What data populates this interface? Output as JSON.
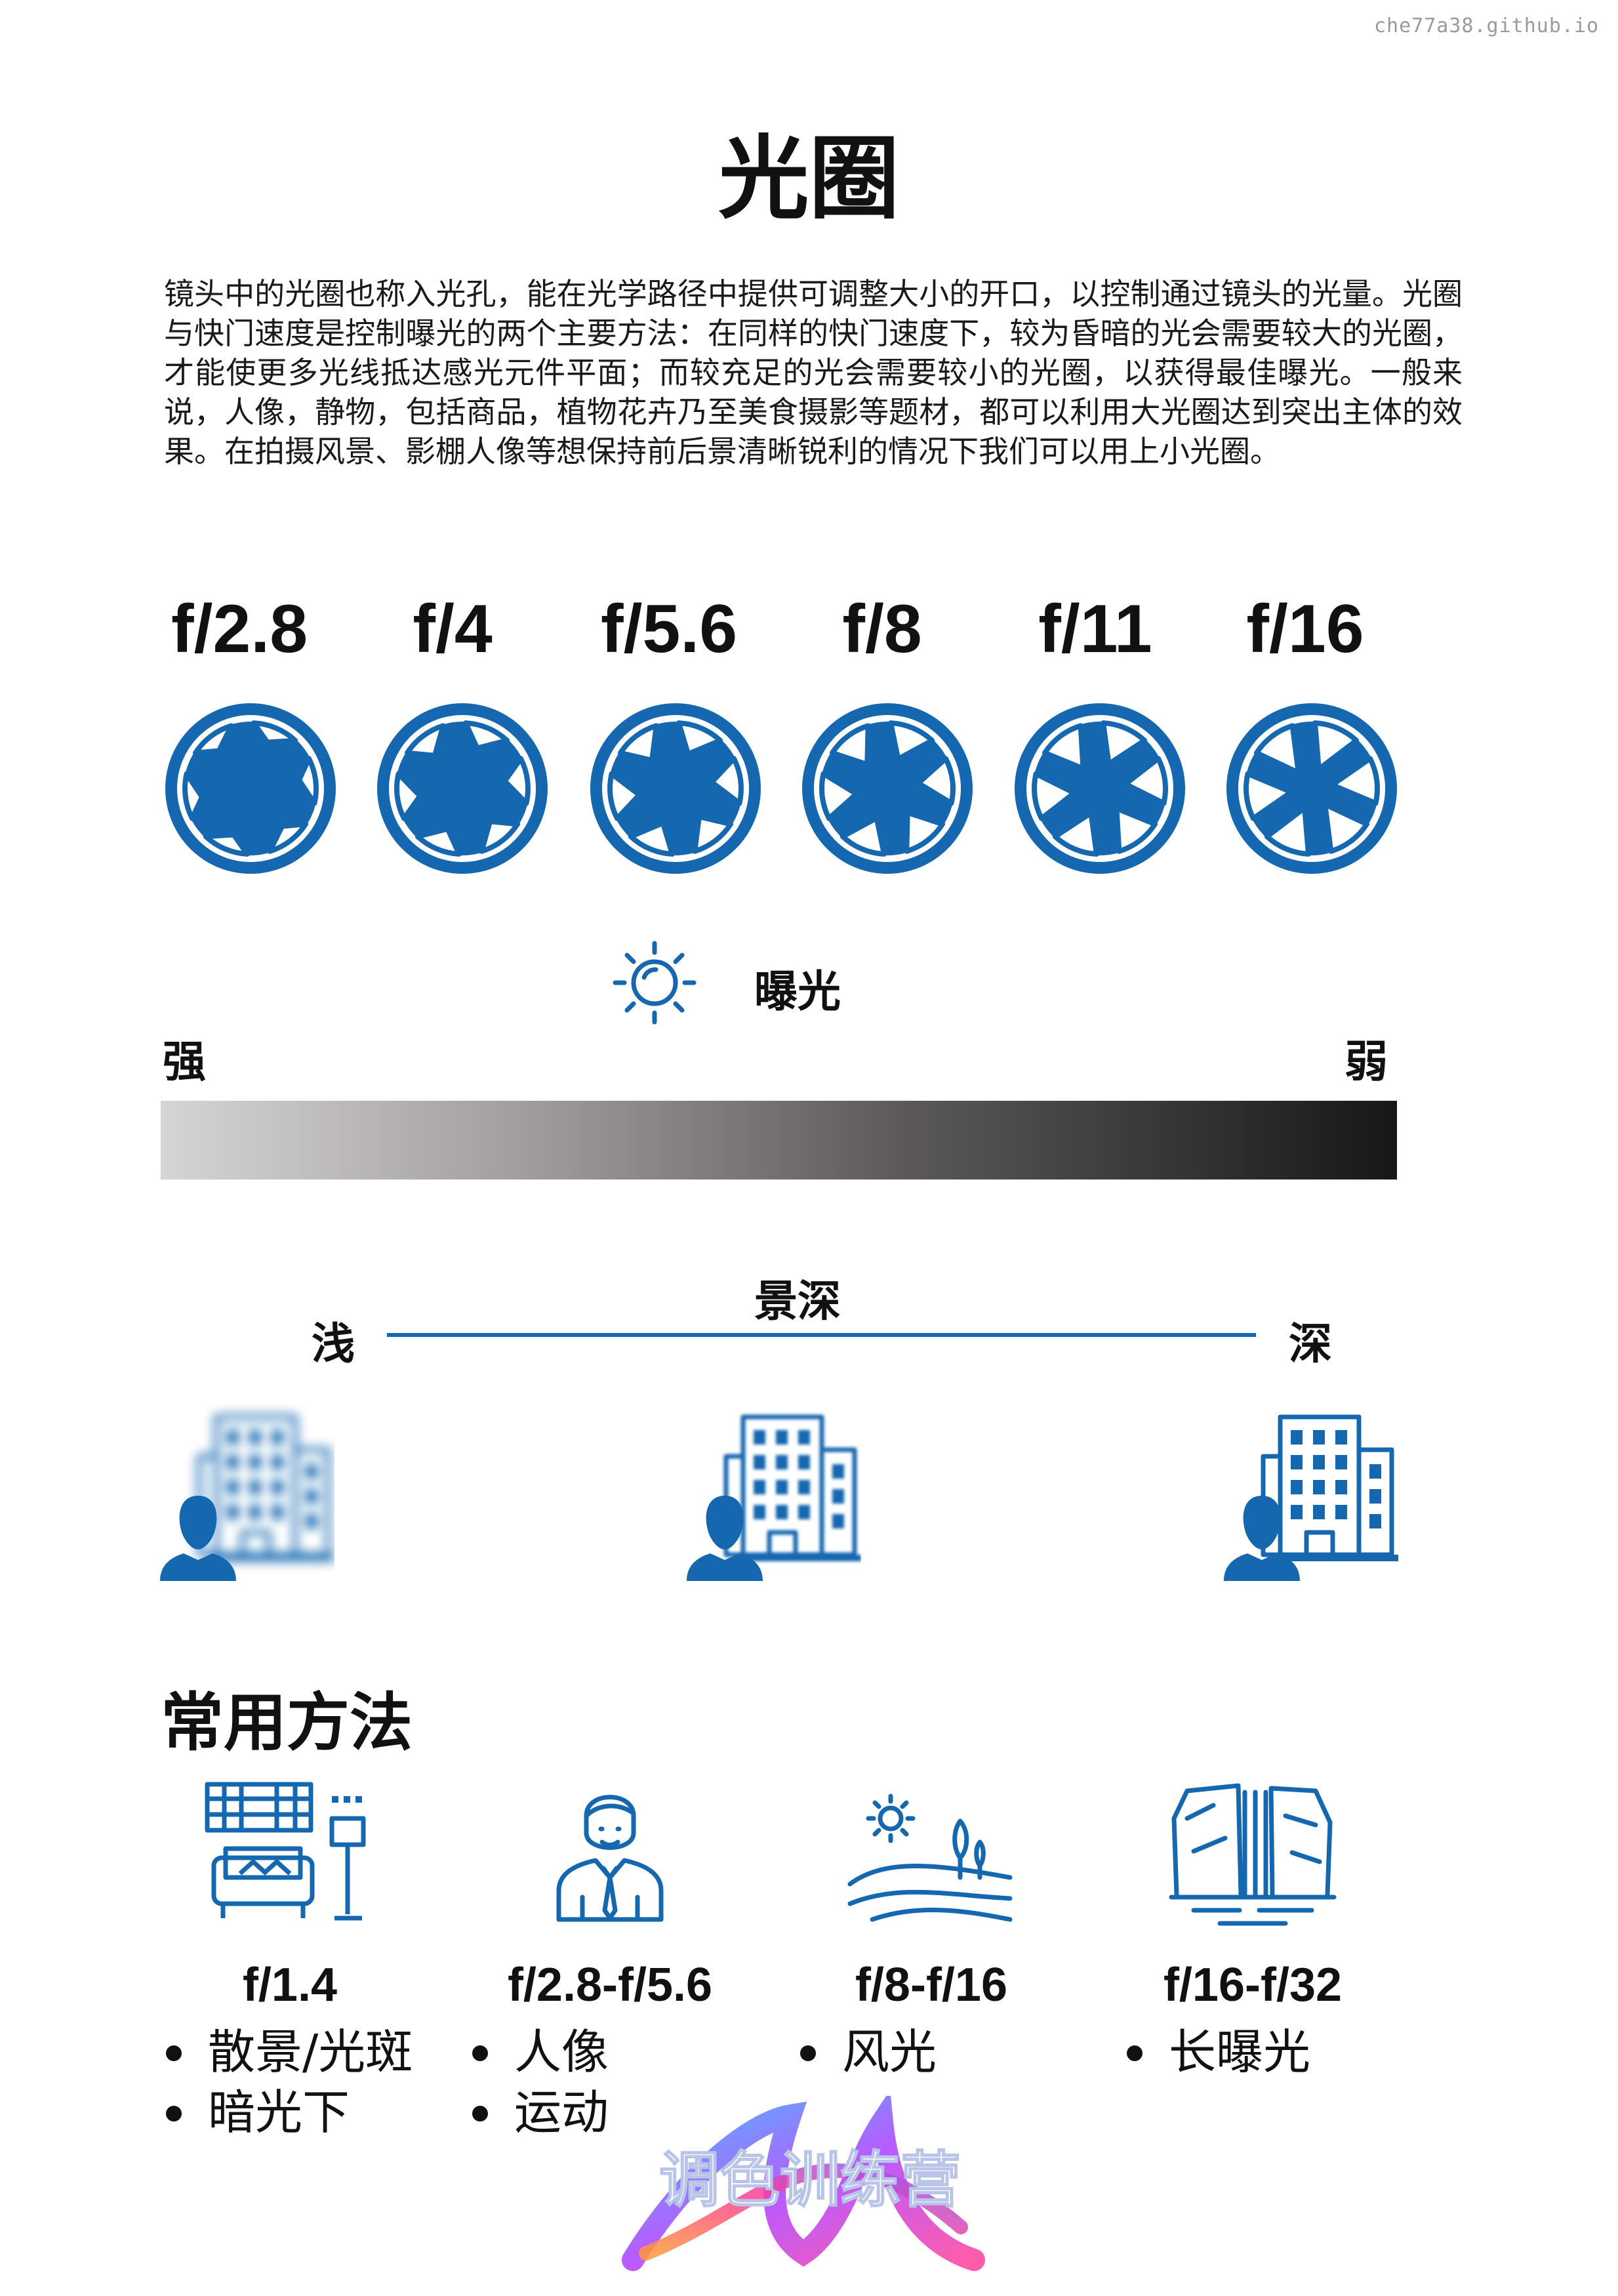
{
  "watermark": "che77a38.github.io",
  "title": "光圈",
  "intro": "镜头中的光圈也称入光孔，能在光学路径中提供可调整大小的开口，以控制通过镜头的光量。光圈与快门速度是控制曝光的两个主要方法：在同样的快门速度下，较为昏暗的光会需要较大的光圈，才能使更多光线抵达感光元件平面；而较充足的光会需要较小的光圈，以获得最佳曝光。一般来说，人像，静物，包括商品，植物花卉乃至美食摄影等题材，都可以利用大光圈达到突出主体的效果。在拍摄风景、影棚人像等想保持前后景清晰锐利的情况下我们可以用上小光圈。",
  "f_stops": [
    {
      "label": "f/2.8",
      "opening": 0.78
    },
    {
      "label": "f/4",
      "opening": 0.64
    },
    {
      "label": "f/5.6",
      "opening": 0.5
    },
    {
      "label": "f/8",
      "opening": 0.38
    },
    {
      "label": "f/11",
      "opening": 0.26
    },
    {
      "label": "f/16",
      "opening": 0.14
    }
  ],
  "exposure": {
    "title": "曝光",
    "left_label": "强",
    "right_label": "弱",
    "icon": "sun-icon"
  },
  "dof": {
    "title": "景深",
    "left_label": "浅",
    "right_label": "深",
    "scenes": [
      {
        "name": "shallow",
        "blur": 8
      },
      {
        "name": "medium",
        "blur": 2.5
      },
      {
        "name": "deep",
        "blur": 0
      }
    ]
  },
  "uses": {
    "title": "常用方法",
    "items": [
      {
        "icon": "living-room-icon",
        "fstop": "f/1.4",
        "bullets": [
          "散景/光斑",
          "暗光下"
        ]
      },
      {
        "icon": "portrait-person-icon",
        "fstop": "f/2.8-f/5.6",
        "bullets": [
          "人像",
          "运动"
        ]
      },
      {
        "icon": "landscape-icon",
        "fstop": "f/8-f/16",
        "bullets": [
          "风光"
        ]
      },
      {
        "icon": "waterfall-icon",
        "fstop": "f/16-f/32",
        "bullets": [
          "长曝光"
        ]
      }
    ]
  },
  "logo_text": "调色训练营",
  "colors": {
    "accent": "#1568b0",
    "text": "#111111"
  }
}
